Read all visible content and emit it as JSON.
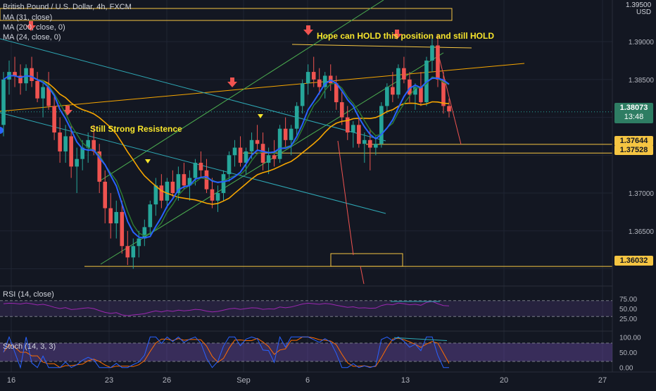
{
  "header": {
    "symbol": "British Pound / U.S. Dollar, 4h, FXCM",
    "indicators": [
      "MA (31, close)",
      "MA (200, close, 0)",
      "MA (24, close, 0)"
    ],
    "currency_top": "1.39500",
    "currency": "USD"
  },
  "annotations": {
    "hold": "Hope can HOLD this position and still HOLD",
    "resistance": "Still Strong Resistence"
  },
  "price_tags": {
    "current": "1.38073",
    "countdown": "13:48",
    "level1": "1.37644",
    "level2": "1.37528",
    "level3": "1.36032"
  },
  "sub_panes": {
    "rsi_label": "RSI (14, close)",
    "stoch_label": "Stoch (14, 3, 3)"
  },
  "colors": {
    "bg": "#131722",
    "up": "#26a69a",
    "down": "#ef5350",
    "ma31": "#2962ff",
    "ma200": "#f7a600",
    "ma24": "#2e7d32",
    "level": "#f5c542",
    "trend": "#2ea8b5",
    "channel": "#4caf50",
    "arrow": "#ef5350",
    "rsi": "#9c27b0",
    "stoch_k": "#2962ff",
    "stoch_d": "#ff6d00"
  },
  "chart_data": {
    "type": "candlestick",
    "title": "British Pound / U.S. Dollar, 4h, FXCM",
    "y_ticks": [
      1.39,
      1.385,
      1.38,
      1.375,
      1.37,
      1.365,
      1.36
    ],
    "y_tick_labels": [
      "1.39000",
      "1.38500",
      "",
      "",
      "1.37000",
      "1.36500",
      ""
    ],
    "ylim": [
      1.358,
      1.3955
    ],
    "x_tick_labels": [
      "16",
      "23",
      "26",
      "Sep",
      "6",
      "13",
      "20",
      "27"
    ],
    "candles": [
      [
        1.379,
        1.386,
        1.3775,
        1.385
      ],
      [
        1.385,
        1.3875,
        1.383,
        1.386
      ],
      [
        1.386,
        1.388,
        1.384,
        1.3855
      ],
      [
        1.3855,
        1.387,
        1.383,
        1.3845
      ],
      [
        1.3845,
        1.387,
        1.3835,
        1.3865
      ],
      [
        1.3865,
        1.388,
        1.384,
        1.3848
      ],
      [
        1.3848,
        1.386,
        1.382,
        1.3825
      ],
      [
        1.3825,
        1.3845,
        1.38,
        1.384
      ],
      [
        1.384,
        1.386,
        1.381,
        1.3815
      ],
      [
        1.3815,
        1.383,
        1.377,
        1.378
      ],
      [
        1.378,
        1.38,
        1.374,
        1.3755
      ],
      [
        1.3755,
        1.379,
        1.374,
        1.3775
      ],
      [
        1.3775,
        1.379,
        1.372,
        1.3735
      ],
      [
        1.3735,
        1.376,
        1.37,
        1.3745
      ],
      [
        1.3745,
        1.377,
        1.373,
        1.376
      ],
      [
        1.376,
        1.378,
        1.374,
        1.377
      ],
      [
        1.377,
        1.379,
        1.375,
        1.3755
      ],
      [
        1.3755,
        1.3765,
        1.37,
        1.3715
      ],
      [
        1.3715,
        1.373,
        1.366,
        1.368
      ],
      [
        1.368,
        1.37,
        1.364,
        1.366
      ],
      [
        1.366,
        1.369,
        1.364,
        1.3675
      ],
      [
        1.3675,
        1.369,
        1.362,
        1.363
      ],
      [
        1.363,
        1.365,
        1.3605,
        1.3615
      ],
      [
        1.3615,
        1.364,
        1.36,
        1.363
      ],
      [
        1.363,
        1.365,
        1.3615,
        1.364
      ],
      [
        1.364,
        1.3665,
        1.363,
        1.3655
      ],
      [
        1.3655,
        1.369,
        1.3645,
        1.3685
      ],
      [
        1.3685,
        1.372,
        1.367,
        1.371
      ],
      [
        1.371,
        1.3725,
        1.368,
        1.369
      ],
      [
        1.369,
        1.372,
        1.368,
        1.3715
      ],
      [
        1.3715,
        1.373,
        1.3695,
        1.37
      ],
      [
        1.37,
        1.3735,
        1.369,
        1.3725
      ],
      [
        1.3725,
        1.374,
        1.3705,
        1.371
      ],
      [
        1.371,
        1.373,
        1.369,
        1.372
      ],
      [
        1.372,
        1.3745,
        1.371,
        1.374
      ],
      [
        1.374,
        1.3755,
        1.372,
        1.373
      ],
      [
        1.373,
        1.3745,
        1.37,
        1.3705
      ],
      [
        1.3705,
        1.372,
        1.368,
        1.369
      ],
      [
        1.369,
        1.371,
        1.3675,
        1.37
      ],
      [
        1.37,
        1.373,
        1.369,
        1.3725
      ],
      [
        1.3725,
        1.3755,
        1.3715,
        1.375
      ],
      [
        1.375,
        1.377,
        1.3735,
        1.376
      ],
      [
        1.376,
        1.3775,
        1.3735,
        1.374
      ],
      [
        1.374,
        1.376,
        1.3725,
        1.3755
      ],
      [
        1.3755,
        1.378,
        1.3745,
        1.377
      ],
      [
        1.377,
        1.379,
        1.3755,
        1.3765
      ],
      [
        1.3765,
        1.378,
        1.373,
        1.374
      ],
      [
        1.374,
        1.376,
        1.3725,
        1.375
      ],
      [
        1.375,
        1.377,
        1.3735,
        1.3745
      ],
      [
        1.3745,
        1.379,
        1.374,
        1.3785
      ],
      [
        1.3785,
        1.38,
        1.376,
        1.377
      ],
      [
        1.377,
        1.379,
        1.375,
        1.3785
      ],
      [
        1.3785,
        1.382,
        1.3775,
        1.3815
      ],
      [
        1.3815,
        1.385,
        1.3805,
        1.3845
      ],
      [
        1.3845,
        1.387,
        1.383,
        1.386
      ],
      [
        1.386,
        1.388,
        1.384,
        1.385
      ],
      [
        1.385,
        1.3865,
        1.383,
        1.384
      ],
      [
        1.384,
        1.386,
        1.3825,
        1.3855
      ],
      [
        1.3855,
        1.387,
        1.3835,
        1.3845
      ],
      [
        1.3845,
        1.3855,
        1.381,
        1.382
      ],
      [
        1.382,
        1.3835,
        1.379,
        1.38
      ],
      [
        1.38,
        1.3815,
        1.377,
        1.378
      ],
      [
        1.378,
        1.3795,
        1.376,
        1.379
      ],
      [
        1.379,
        1.38,
        1.376,
        1.3765
      ],
      [
        1.3765,
        1.378,
        1.374,
        1.377
      ],
      [
        1.377,
        1.3785,
        1.373,
        1.376
      ],
      [
        1.376,
        1.3775,
        1.375,
        1.3765
      ],
      [
        1.3765,
        1.382,
        1.376,
        1.3815
      ],
      [
        1.3815,
        1.3845,
        1.3805,
        1.384
      ],
      [
        1.384,
        1.386,
        1.382,
        1.383
      ],
      [
        1.383,
        1.387,
        1.3825,
        1.3865
      ],
      [
        1.3865,
        1.388,
        1.3845,
        1.385
      ],
      [
        1.385,
        1.386,
        1.382,
        1.383
      ],
      [
        1.383,
        1.3845,
        1.381,
        1.384
      ],
      [
        1.384,
        1.386,
        1.3815,
        1.382
      ],
      [
        1.382,
        1.388,
        1.3815,
        1.3875
      ],
      [
        1.3875,
        1.3905,
        1.386,
        1.3895
      ],
      [
        1.3895,
        1.391,
        1.384,
        1.385
      ],
      [
        1.385,
        1.386,
        1.3805,
        1.3815
      ],
      [
        1.3815,
        1.3825,
        1.38,
        1.3808
      ]
    ],
    "levels": [
      1.37644,
      1.37528,
      1.36032
    ],
    "current_price": 1.38073,
    "rsi": {
      "ylim": [
        0,
        100
      ],
      "ticks": [
        75.0,
        50.0,
        25.0
      ],
      "tick_labels": [
        "75.00",
        "50.00",
        "25.00"
      ],
      "bands": [
        70,
        30
      ]
    },
    "stoch": {
      "ylim": [
        -10,
        110
      ],
      "ticks": [
        100.0,
        50.0,
        0.0
      ],
      "tick_labels": [
        "100.00",
        "50.00",
        "0.00"
      ],
      "bands": [
        80,
        20
      ]
    }
  }
}
